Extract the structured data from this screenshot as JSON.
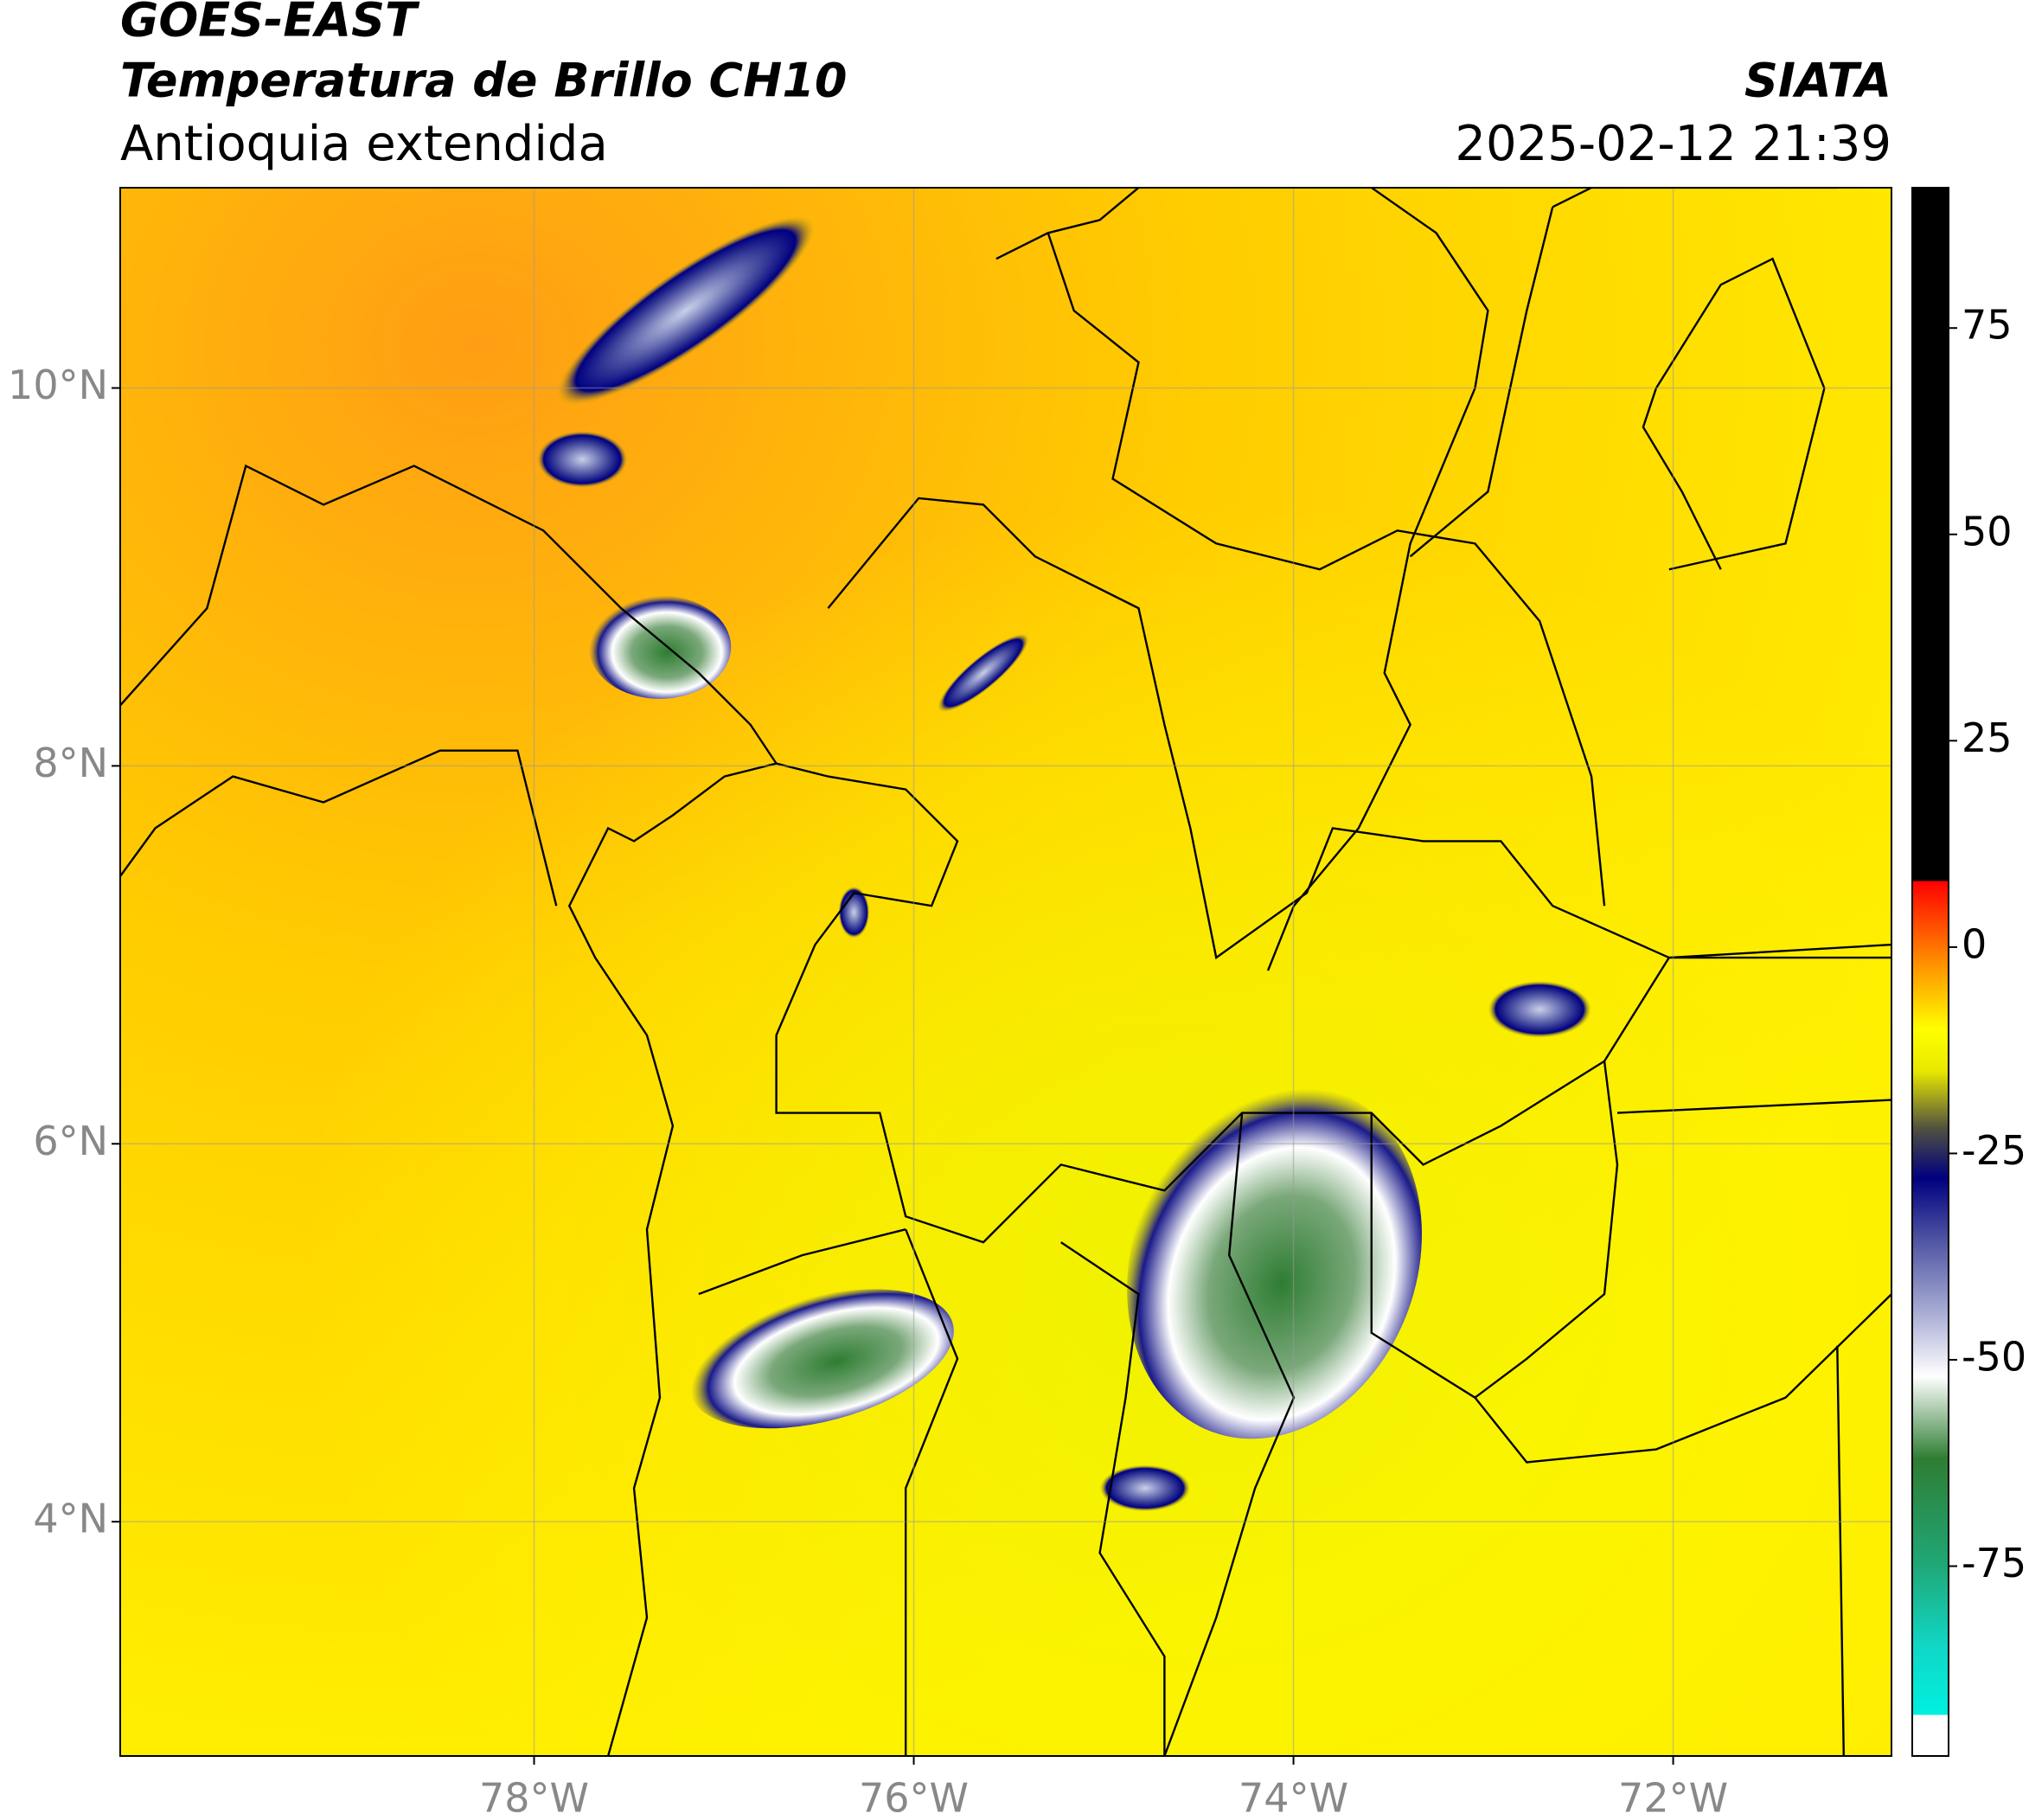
{
  "chart_data": {
    "type": "map",
    "title": "GOES-EAST",
    "subtitle": "Temperatura de Brillo CH10",
    "region": "Antioquia extendida",
    "source": "SIATA",
    "datetime": "2025-02-12 21:39",
    "xlim": [
      -80.18,
      -70.85
    ],
    "ylim": [
      2.76,
      11.06
    ],
    "xticks": [
      {
        "value": -78,
        "label": "78°W"
      },
      {
        "value": -76,
        "label": "76°W"
      },
      {
        "value": -74,
        "label": "74°W"
      },
      {
        "value": -72,
        "label": "72°W"
      }
    ],
    "yticks": [
      {
        "value": 4,
        "label": "4°N"
      },
      {
        "value": 6,
        "label": "6°N"
      },
      {
        "value": 8,
        "label": "8°N"
      },
      {
        "value": 10,
        "label": "10°N"
      }
    ],
    "grid": true,
    "colorbar": {
      "lim": [
        -98,
        92
      ],
      "ticks": [
        -75,
        -50,
        -25,
        0,
        25,
        50,
        75
      ],
      "colormap": [
        [
          -98,
          "#ffffff"
        ],
        [
          -93,
          "#ffffff"
        ],
        [
          -93,
          "#00f0e0"
        ],
        [
          -85,
          "#10d8c8"
        ],
        [
          -75,
          "#20a878"
        ],
        [
          -62,
          "#2e7d32"
        ],
        [
          -52,
          "#ffffff"
        ],
        [
          -45,
          "#b0b4d8"
        ],
        [
          -35,
          "#4a4fa0"
        ],
        [
          -28,
          "#000080"
        ],
        [
          -22,
          "#505040"
        ],
        [
          -15,
          "#e8e800"
        ],
        [
          -10,
          "#ffff00"
        ],
        [
          -2,
          "#ff9000"
        ],
        [
          8,
          "#ff0000"
        ],
        [
          8,
          "#000000"
        ],
        [
          92,
          "#000000"
        ]
      ]
    }
  }
}
